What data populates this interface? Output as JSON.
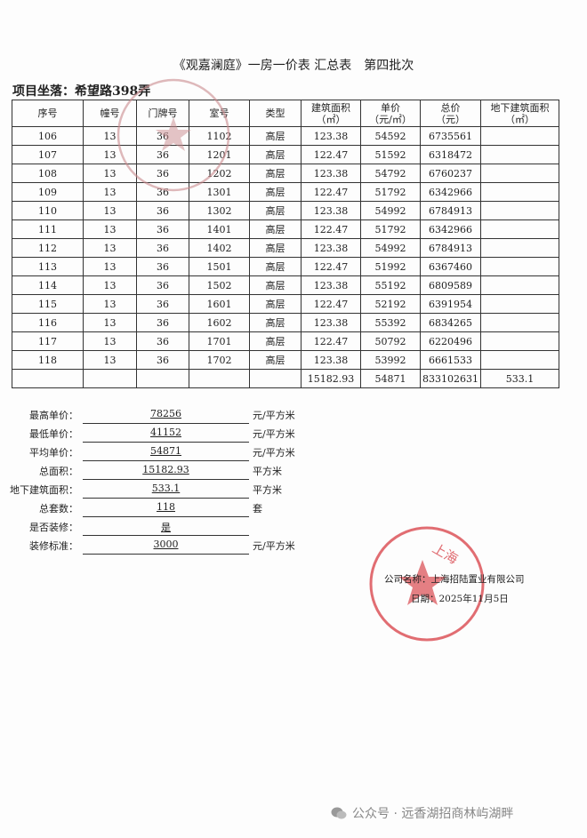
{
  "title": "《观嘉澜庭》一房一价表 汇总表　第四批次",
  "location": "项目坐落：希望路398弄",
  "table": {
    "headers": [
      "序号",
      "幢号",
      "门牌号",
      "室号",
      "类型",
      "建筑面积\n（㎡）",
      "单价\n（元/㎡）",
      "总价\n（元）",
      "地下建筑面积\n（㎡）"
    ],
    "rows": [
      [
        "106",
        "13",
        "36",
        "1102",
        "高层",
        "123.38",
        "54592",
        "6735561",
        ""
      ],
      [
        "107",
        "13",
        "36",
        "1201",
        "高层",
        "122.47",
        "51592",
        "6318472",
        ""
      ],
      [
        "108",
        "13",
        "36",
        "1202",
        "高层",
        "123.38",
        "54792",
        "6760237",
        ""
      ],
      [
        "109",
        "13",
        "36",
        "1301",
        "高层",
        "122.47",
        "51792",
        "6342966",
        ""
      ],
      [
        "110",
        "13",
        "36",
        "1302",
        "高层",
        "123.38",
        "54992",
        "6784913",
        ""
      ],
      [
        "111",
        "13",
        "36",
        "1401",
        "高层",
        "122.47",
        "51792",
        "6342966",
        ""
      ],
      [
        "112",
        "13",
        "36",
        "1402",
        "高层",
        "123.38",
        "54992",
        "6784913",
        ""
      ],
      [
        "113",
        "13",
        "36",
        "1501",
        "高层",
        "122.47",
        "51992",
        "6367460",
        ""
      ],
      [
        "114",
        "13",
        "36",
        "1502",
        "高层",
        "123.38",
        "55192",
        "6809589",
        ""
      ],
      [
        "115",
        "13",
        "36",
        "1601",
        "高层",
        "122.47",
        "52192",
        "6391954",
        ""
      ],
      [
        "116",
        "13",
        "36",
        "1602",
        "高层",
        "123.38",
        "55392",
        "6834265",
        ""
      ],
      [
        "117",
        "13",
        "36",
        "1701",
        "高层",
        "122.47",
        "50792",
        "6220496",
        ""
      ],
      [
        "118",
        "13",
        "36",
        "1702",
        "高层",
        "123.38",
        "53992",
        "6661533",
        ""
      ],
      [
        "",
        "",
        "",
        "",
        "",
        "15182.93",
        "54871",
        "833102631",
        "533.1"
      ]
    ]
  },
  "summary": [
    {
      "label": "最高单价：",
      "value": "78256",
      "unit": "元/平方米"
    },
    {
      "label": "最低单价：",
      "value": "41152",
      "unit": "元/平方米"
    },
    {
      "label": "平均单价：",
      "value": "54871",
      "unit": "元/平方米"
    },
    {
      "label": "总面积：",
      "value": "15182.93",
      "unit": "平方米"
    },
    {
      "label": "地下建筑面积：",
      "value": "533.1",
      "unit": "平方米"
    },
    {
      "label": "总套数：",
      "value": "118",
      "unit": "套"
    },
    {
      "label": "是否装修：",
      "value": "是",
      "unit": ""
    },
    {
      "label": "装修标准：",
      "value": "3000",
      "unit": "元/平方米"
    }
  ],
  "company": "公司名称：上海招陆置业有限公司",
  "date": "日期：2025年11月5日",
  "stamp_text": "上海招陆置业有限公司",
  "watermark": "公众号 · 远香湖招商林屿湖畔",
  "stamp_color": "#d9484f"
}
